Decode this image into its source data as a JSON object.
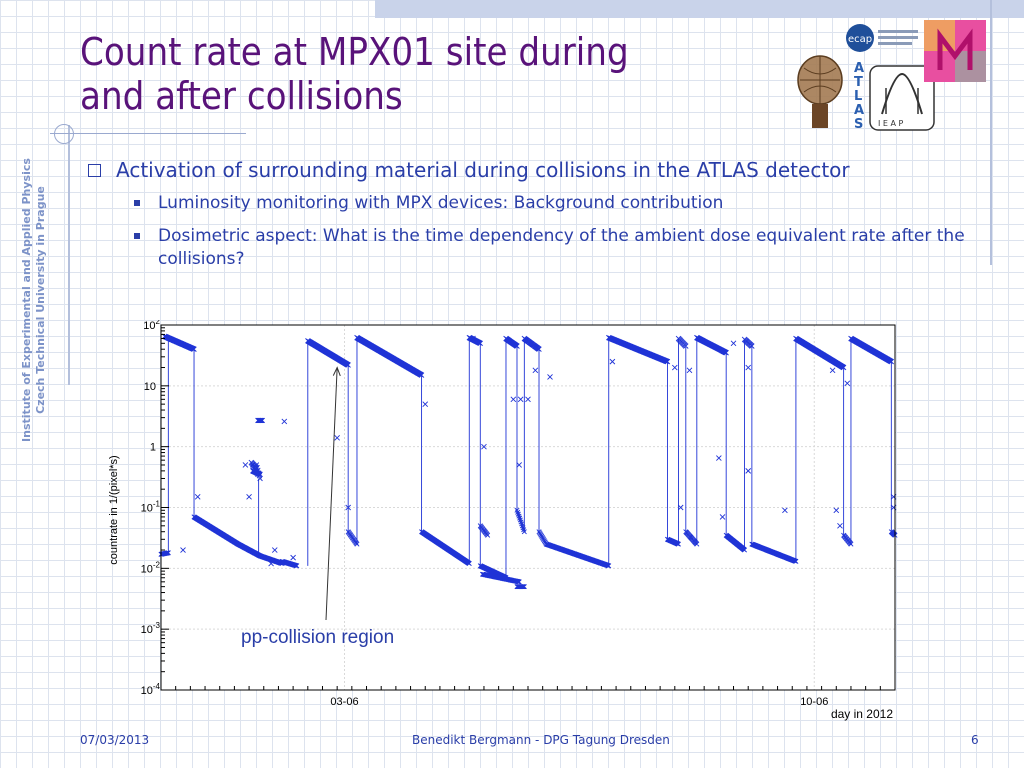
{
  "slide": {
    "title_line1": "Count rate at MPX01 site during",
    "title_line2": "and after collisions",
    "side_line1": "Institute of Experimental and Applied Physics",
    "side_line2": "Czech Technical University in Prague",
    "bullet_main": "Activation of surrounding material during collisions in the ATLAS detector",
    "sub_bullets": [
      "Luminosity monitoring with MPX devices: Background contribution",
      "Dosimetric aspect: What is the time dependency of the ambient dose equivalent rate after the collisions?"
    ],
    "annotation": "pp-collision region",
    "logos": {
      "atlas_letters": [
        "A",
        "T",
        "L",
        "A",
        "S"
      ],
      "ieap_label": "I E A P",
      "ecap_label": "ecap"
    },
    "footer": {
      "date": "07/03/2013",
      "author": "Benedikt Bergmann - DPG Tagung Dresden",
      "page": "6"
    }
  },
  "colors": {
    "title": "#59137a",
    "text": "#2a3ea8",
    "data": "#1f33d6",
    "accent": "#7d93c8"
  },
  "chart_data": {
    "type": "scatter",
    "log_y": true,
    "ylim": [
      0.0001,
      100
    ],
    "xlim": [
      0,
      100
    ],
    "ylabel": "countrate in 1/(pixel*s)",
    "xlabel": "day in 2012",
    "y_ticks": [
      {
        "v": 0.0001,
        "label": "10",
        "exp": "-4"
      },
      {
        "v": 0.001,
        "label": "10",
        "exp": "-3"
      },
      {
        "v": 0.01,
        "label": "10",
        "exp": "-2"
      },
      {
        "v": 0.1,
        "label": "10",
        "exp": "-1"
      },
      {
        "v": 1,
        "label": "1",
        "exp": ""
      },
      {
        "v": 10,
        "label": "10",
        "exp": ""
      },
      {
        "v": 100,
        "label": "10",
        "exp": "2"
      }
    ],
    "x_ticks": [
      {
        "v": 25,
        "label": "03-06"
      },
      {
        "v": 89,
        "label": "10-06"
      }
    ],
    "collision_segments": [
      {
        "x0": 0.5,
        "x1": 4.5,
        "y0": 65,
        "y1": 40
      },
      {
        "x0": 12.5,
        "x1": 13.2,
        "y0": 0.5,
        "y1": 0.35
      },
      {
        "x0": 12.3,
        "x1": 13,
        "y0": 0.55,
        "y1": 0.45
      },
      {
        "x0": 13,
        "x1": 13.5,
        "y0": 0.5,
        "y1": 0.3
      },
      {
        "x0": 13.2,
        "x1": 13.8,
        "y0": 2.7,
        "y1": 2.7
      },
      {
        "x0": 12.5,
        "x1": 13.5,
        "y0": 0.4,
        "y1": 0.35
      },
      {
        "x0": 20,
        "x1": 25.5,
        "y0": 55,
        "y1": 22
      },
      {
        "x0": 26.7,
        "x1": 35.5,
        "y0": 62,
        "y1": 15
      },
      {
        "x0": 42,
        "x1": 43.5,
        "y0": 62,
        "y1": 50
      },
      {
        "x0": 47,
        "x1": 48.5,
        "y0": 60,
        "y1": 45
      },
      {
        "x0": 49.5,
        "x1": 51.5,
        "y0": 60,
        "y1": 40
      },
      {
        "x0": 61,
        "x1": 69,
        "y0": 62,
        "y1": 25
      },
      {
        "x0": 70.5,
        "x1": 71.5,
        "y0": 60,
        "y1": 45
      },
      {
        "x0": 73,
        "x1": 77,
        "y0": 62,
        "y1": 35
      },
      {
        "x0": 79.5,
        "x1": 80.5,
        "y0": 58,
        "y1": 45
      },
      {
        "x0": 86.5,
        "x1": 93,
        "y0": 60,
        "y1": 20
      },
      {
        "x0": 94,
        "x1": 99.5,
        "y0": 60,
        "y1": 25
      }
    ],
    "decay_segments": [
      {
        "x0": 0,
        "x1": 1,
        "y0": 0.017,
        "y1": 0.018
      },
      {
        "x0": 4.5,
        "x1": 10.5,
        "y0": 0.07,
        "y1": 0.025
      },
      {
        "x0": 10.5,
        "x1": 13.5,
        "y0": 0.025,
        "y1": 0.016
      },
      {
        "x0": 13.5,
        "x1": 16.5,
        "y0": 0.016,
        "y1": 0.012
      },
      {
        "x0": 16.5,
        "x1": 18.5,
        "y0": 0.013,
        "y1": 0.011
      },
      {
        "x0": 25.5,
        "x1": 26.7,
        "y0": 0.04,
        "y1": 0.025
      },
      {
        "x0": 35.5,
        "x1": 42,
        "y0": 0.04,
        "y1": 0.012
      },
      {
        "x0": 43.5,
        "x1": 47,
        "y0": 0.011,
        "y1": 0.007
      },
      {
        "x0": 48.5,
        "x1": 49.5,
        "y0": 0.005,
        "y1": 0.005
      },
      {
        "x0": 43.8,
        "x1": 48.8,
        "y0": 0.008,
        "y1": 0.006
      },
      {
        "x0": 43.5,
        "x1": 44.5,
        "y0": 0.05,
        "y1": 0.035
      },
      {
        "x0": 48.5,
        "x1": 49.5,
        "y0": 0.09,
        "y1": 0.04
      },
      {
        "x0": 51.5,
        "x1": 52.5,
        "y0": 0.04,
        "y1": 0.025
      },
      {
        "x0": 52.5,
        "x1": 61,
        "y0": 0.025,
        "y1": 0.011
      },
      {
        "x0": 69,
        "x1": 70.5,
        "y0": 0.03,
        "y1": 0.025
      },
      {
        "x0": 71.5,
        "x1": 73,
        "y0": 0.04,
        "y1": 0.025
      },
      {
        "x0": 77,
        "x1": 79.5,
        "y0": 0.035,
        "y1": 0.02
      },
      {
        "x0": 80.5,
        "x1": 86.5,
        "y0": 0.025,
        "y1": 0.013
      },
      {
        "x0": 93,
        "x1": 94,
        "y0": 0.035,
        "y1": 0.025
      },
      {
        "x0": 99.5,
        "x1": 100,
        "y0": 0.04,
        "y1": 0.035
      }
    ],
    "drops": [
      {
        "x": 1,
        "y0": 0.018,
        "y1": 65
      },
      {
        "x": 4.5,
        "y0": 40,
        "y1": 0.07
      },
      {
        "x": 13.3,
        "y0": 0.3,
        "y1": 0.016
      },
      {
        "x": 20,
        "y0": 0.011,
        "y1": 55
      },
      {
        "x": 25.5,
        "y0": 22,
        "y1": 0.04
      },
      {
        "x": 26.7,
        "y0": 0.025,
        "y1": 62
      },
      {
        "x": 35.5,
        "y0": 15,
        "y1": 0.04
      },
      {
        "x": 42,
        "y0": 0.012,
        "y1": 62
      },
      {
        "x": 43.5,
        "y0": 50,
        "y1": 0.011
      },
      {
        "x": 47,
        "y0": 0.007,
        "y1": 60
      },
      {
        "x": 48.5,
        "y0": 45,
        "y1": 0.09
      },
      {
        "x": 49.5,
        "y0": 0.04,
        "y1": 60
      },
      {
        "x": 51.5,
        "y0": 40,
        "y1": 0.04
      },
      {
        "x": 61,
        "y0": 0.011,
        "y1": 62
      },
      {
        "x": 69,
        "y0": 25,
        "y1": 0.03
      },
      {
        "x": 70.5,
        "y0": 0.025,
        "y1": 60
      },
      {
        "x": 71.5,
        "y0": 45,
        "y1": 0.04
      },
      {
        "x": 73,
        "y0": 0.025,
        "y1": 62
      },
      {
        "x": 77,
        "y0": 35,
        "y1": 0.035
      },
      {
        "x": 79.5,
        "y0": 0.02,
        "y1": 58
      },
      {
        "x": 80.5,
        "y0": 45,
        "y1": 0.025
      },
      {
        "x": 86.5,
        "y0": 0.013,
        "y1": 60
      },
      {
        "x": 93,
        "y0": 20,
        "y1": 0.035
      },
      {
        "x": 94,
        "y0": 0.025,
        "y1": 60
      },
      {
        "x": 99.5,
        "y0": 25,
        "y1": 0.04
      }
    ],
    "outliers": [
      {
        "x": 5,
        "y": 0.15
      },
      {
        "x": 3,
        "y": 0.02
      },
      {
        "x": 11.5,
        "y": 0.5
      },
      {
        "x": 12,
        "y": 0.15
      },
      {
        "x": 15,
        "y": 0.012
      },
      {
        "x": 15.5,
        "y": 0.02
      },
      {
        "x": 16.8,
        "y": 2.6
      },
      {
        "x": 18,
        "y": 0.015
      },
      {
        "x": 24,
        "y": 1.4
      },
      {
        "x": 25.5,
        "y": 0.1
      },
      {
        "x": 36,
        "y": 5
      },
      {
        "x": 42.5,
        "y": 60
      },
      {
        "x": 44,
        "y": 1
      },
      {
        "x": 48,
        "y": 6
      },
      {
        "x": 49,
        "y": 6
      },
      {
        "x": 48.8,
        "y": 0.5
      },
      {
        "x": 50,
        "y": 6
      },
      {
        "x": 51,
        "y": 18
      },
      {
        "x": 53,
        "y": 14
      },
      {
        "x": 61.5,
        "y": 25
      },
      {
        "x": 70,
        "y": 20
      },
      {
        "x": 70.8,
        "y": 0.1
      },
      {
        "x": 72,
        "y": 18
      },
      {
        "x": 76.5,
        "y": 0.07
      },
      {
        "x": 76,
        "y": 0.65
      },
      {
        "x": 78,
        "y": 50
      },
      {
        "x": 80,
        "y": 0.4
      },
      {
        "x": 80,
        "y": 20
      },
      {
        "x": 85,
        "y": 0.09
      },
      {
        "x": 91.5,
        "y": 18
      },
      {
        "x": 92,
        "y": 0.09
      },
      {
        "x": 92.5,
        "y": 0.05
      },
      {
        "x": 99.8,
        "y": 0.15
      },
      {
        "x": 99.8,
        "y": 0.1
      },
      {
        "x": 93.5,
        "y": 11
      }
    ],
    "annotation_arrow_to": {
      "x": 24,
      "y": 20
    }
  }
}
